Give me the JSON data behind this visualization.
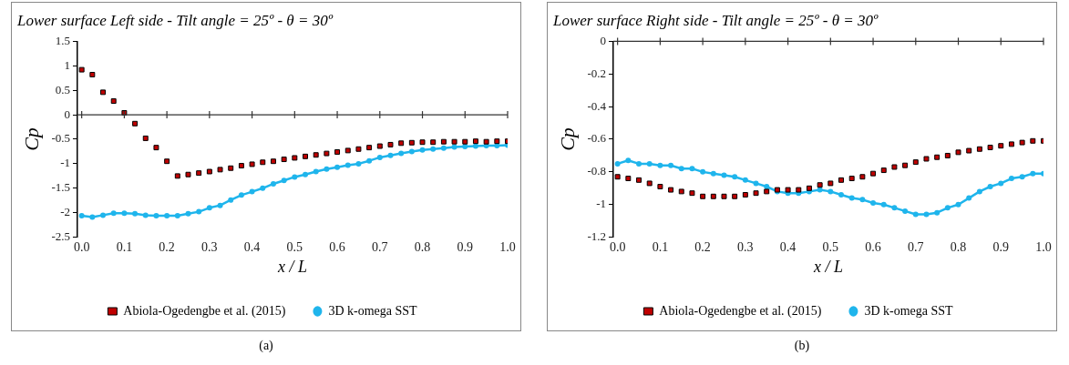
{
  "chart_data": [
    {
      "type": "line",
      "title": "Lower surface Left side - Tilt angle = 25º - θ = 30º",
      "xlabel": "x / L",
      "ylabel": "Cp",
      "legend": "bottom",
      "grid": false,
      "annotations": [
        "(a)"
      ],
      "ref_lines": [
        {
          "axis": "y",
          "value": 0,
          "color": "#333333"
        }
      ],
      "xlim": [
        -0.01,
        1.0
      ],
      "xticks": [
        {
          "value": 0,
          "label": "0.0"
        },
        {
          "value": 0.1,
          "label": "0.1"
        },
        {
          "value": 0.2,
          "label": "0.2"
        },
        {
          "value": 0.3,
          "label": "0.3"
        },
        {
          "value": 0.4,
          "label": "0.4"
        },
        {
          "value": 0.5,
          "label": "0.5"
        },
        {
          "value": 0.6,
          "label": "0.6"
        },
        {
          "value": 0.7,
          "label": "0.7"
        },
        {
          "value": 0.8,
          "label": "0.8"
        },
        {
          "value": 0.9,
          "label": "0.9"
        },
        {
          "value": 1.0,
          "label": "1.0"
        }
      ],
      "ylim": [
        -2.5,
        1.5
      ],
      "yticks": [
        -2.5,
        -2,
        -1.5,
        -1,
        -0.5,
        0,
        0.5,
        1,
        1.5
      ],
      "x": [
        0,
        0.025,
        0.05,
        0.075,
        0.1,
        0.125,
        0.15,
        0.175,
        0.2,
        0.225,
        0.25,
        0.275,
        0.3,
        0.325,
        0.35,
        0.375,
        0.4,
        0.425,
        0.45,
        0.475,
        0.5,
        0.525,
        0.55,
        0.575,
        0.6,
        0.625,
        0.65,
        0.675,
        0.7,
        0.725,
        0.75,
        0.775,
        0.8,
        0.825,
        0.85,
        0.875,
        0.9,
        0.925,
        0.95,
        0.975,
        1.0
      ],
      "series": [
        {
          "name": "Abiola-Ogedengbe et al. (2015)",
          "type": "scatter",
          "marker": "square",
          "color": "#c00000",
          "values": [
            0.92,
            0.82,
            0.46,
            0.28,
            0.04,
            -0.18,
            -0.48,
            -0.67,
            -0.95,
            -1.25,
            -1.22,
            -1.19,
            -1.16,
            -1.12,
            -1.09,
            -1.04,
            -1.01,
            -0.97,
            -0.95,
            -0.91,
            -0.88,
            -0.85,
            -0.82,
            -0.79,
            -0.76,
            -0.73,
            -0.7,
            -0.67,
            -0.64,
            -0.61,
            -0.58,
            -0.57,
            -0.56,
            -0.56,
            -0.55,
            -0.55,
            -0.55,
            -0.54,
            -0.55,
            -0.54,
            -0.54
          ]
        },
        {
          "name": "3D k-omega SST",
          "type": "line",
          "marker": "circle",
          "color": "#1fb5ec",
          "values": [
            -2.06,
            -2.09,
            -2.05,
            -2.01,
            -2.01,
            -2.02,
            -2.05,
            -2.06,
            -2.06,
            -2.06,
            -2.02,
            -1.98,
            -1.9,
            -1.85,
            -1.74,
            -1.64,
            -1.57,
            -1.5,
            -1.41,
            -1.34,
            -1.27,
            -1.22,
            -1.16,
            -1.11,
            -1.07,
            -1.03,
            -1.0,
            -0.94,
            -0.87,
            -0.83,
            -0.79,
            -0.75,
            -0.72,
            -0.7,
            -0.68,
            -0.66,
            -0.65,
            -0.64,
            -0.63,
            -0.63,
            -0.62
          ]
        }
      ]
    },
    {
      "type": "line",
      "title": "Lower surface Right side - Tilt angle = 25º - θ = 30º",
      "xlabel": "x / L",
      "ylabel": "Cp",
      "legend": "bottom",
      "grid": false,
      "annotations": [
        "(b)"
      ],
      "ref_lines": [
        {
          "axis": "y",
          "value": 0,
          "color": "#333333"
        }
      ],
      "xlim": [
        -0.01,
        1.0
      ],
      "xticks": [
        {
          "value": 0,
          "label": "0.0"
        },
        {
          "value": 0.1,
          "label": "0.1"
        },
        {
          "value": 0.2,
          "label": "0.2"
        },
        {
          "value": 0.3,
          "label": "0.3"
        },
        {
          "value": 0.4,
          "label": "0.4"
        },
        {
          "value": 0.5,
          "label": "0.5"
        },
        {
          "value": 0.6,
          "label": "0.6"
        },
        {
          "value": 0.7,
          "label": "0.7"
        },
        {
          "value": 0.8,
          "label": "0.8"
        },
        {
          "value": 0.9,
          "label": "0.9"
        },
        {
          "value": 1.0,
          "label": "1.0"
        }
      ],
      "ylim": [
        -1.2,
        0
      ],
      "yticks": [
        -1.2,
        -1,
        -0.8,
        -0.6,
        -0.4,
        -0.2,
        0
      ],
      "x": [
        0,
        0.025,
        0.05,
        0.075,
        0.1,
        0.125,
        0.15,
        0.175,
        0.2,
        0.225,
        0.25,
        0.275,
        0.3,
        0.325,
        0.35,
        0.375,
        0.4,
        0.425,
        0.45,
        0.475,
        0.5,
        0.525,
        0.55,
        0.575,
        0.6,
        0.625,
        0.65,
        0.675,
        0.7,
        0.725,
        0.75,
        0.775,
        0.8,
        0.825,
        0.85,
        0.875,
        0.9,
        0.925,
        0.95,
        0.975,
        1.0
      ],
      "series": [
        {
          "name": "Abiola-Ogedengbe et al. (2015)",
          "type": "scatter",
          "marker": "square",
          "color": "#c00000",
          "values": [
            -0.83,
            -0.84,
            -0.85,
            -0.87,
            -0.89,
            -0.91,
            -0.92,
            -0.93,
            -0.95,
            -0.95,
            -0.95,
            -0.95,
            -0.94,
            -0.93,
            -0.92,
            -0.91,
            -0.91,
            -0.91,
            -0.9,
            -0.88,
            -0.87,
            -0.85,
            -0.84,
            -0.83,
            -0.81,
            -0.79,
            -0.77,
            -0.76,
            -0.74,
            -0.72,
            -0.71,
            -0.7,
            -0.68,
            -0.67,
            -0.66,
            -0.65,
            -0.64,
            -0.63,
            -0.62,
            -0.61,
            -0.61
          ]
        },
        {
          "name": "3D k-omega SST",
          "type": "line",
          "marker": "circle",
          "color": "#1fb5ec",
          "values": [
            -0.75,
            -0.73,
            -0.75,
            -0.75,
            -0.76,
            -0.76,
            -0.78,
            -0.78,
            -0.8,
            -0.81,
            -0.82,
            -0.83,
            -0.85,
            -0.87,
            -0.89,
            -0.92,
            -0.93,
            -0.93,
            -0.92,
            -0.91,
            -0.92,
            -0.94,
            -0.96,
            -0.97,
            -0.99,
            -1.0,
            -1.02,
            -1.04,
            -1.06,
            -1.06,
            -1.05,
            -1.02,
            -1.0,
            -0.96,
            -0.92,
            -0.89,
            -0.87,
            -0.84,
            -0.83,
            -0.81,
            -0.81
          ]
        }
      ]
    }
  ]
}
